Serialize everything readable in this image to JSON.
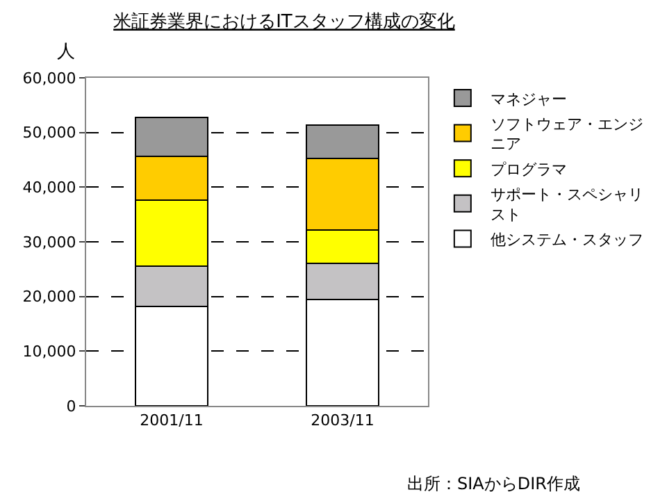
{
  "chart_data": {
    "type": "bar",
    "stacked": true,
    "title": "米証券業界におけるITスタッフ構成の変化",
    "ylabel": "人",
    "categories": [
      "2001/11",
      "2003/11"
    ],
    "series": [
      {
        "name": "他システム・スタッフ",
        "color": "#ffffff",
        "values": [
          18200,
          19500
        ]
      },
      {
        "name": "サポート・スペシャリスト",
        "color": "#c4c2c4",
        "values": [
          7400,
          6600
        ]
      },
      {
        "name": "プログラマ",
        "color": "#ffff00",
        "values": [
          12000,
          6100
        ]
      },
      {
        "name": "ソフトウェア・エンジニア",
        "color": "#ffcc00",
        "values": [
          8100,
          13000
        ]
      },
      {
        "name": "マネジャー",
        "color": "#999999",
        "values": [
          7100,
          6100
        ]
      }
    ],
    "ylim": [
      0,
      60000
    ],
    "yticks": [
      {
        "value": 0,
        "label": "0"
      },
      {
        "value": 10000,
        "label": "10,000"
      },
      {
        "value": 20000,
        "label": "20,000"
      },
      {
        "value": 30000,
        "label": "30,000"
      },
      {
        "value": 40000,
        "label": "40,000"
      },
      {
        "value": 50000,
        "label": "50,000"
      },
      {
        "value": 60000,
        "label": "60,000"
      }
    ],
    "grid": "y",
    "legend": "right",
    "annotations": [
      "出所：SIAからDIR作成"
    ]
  }
}
